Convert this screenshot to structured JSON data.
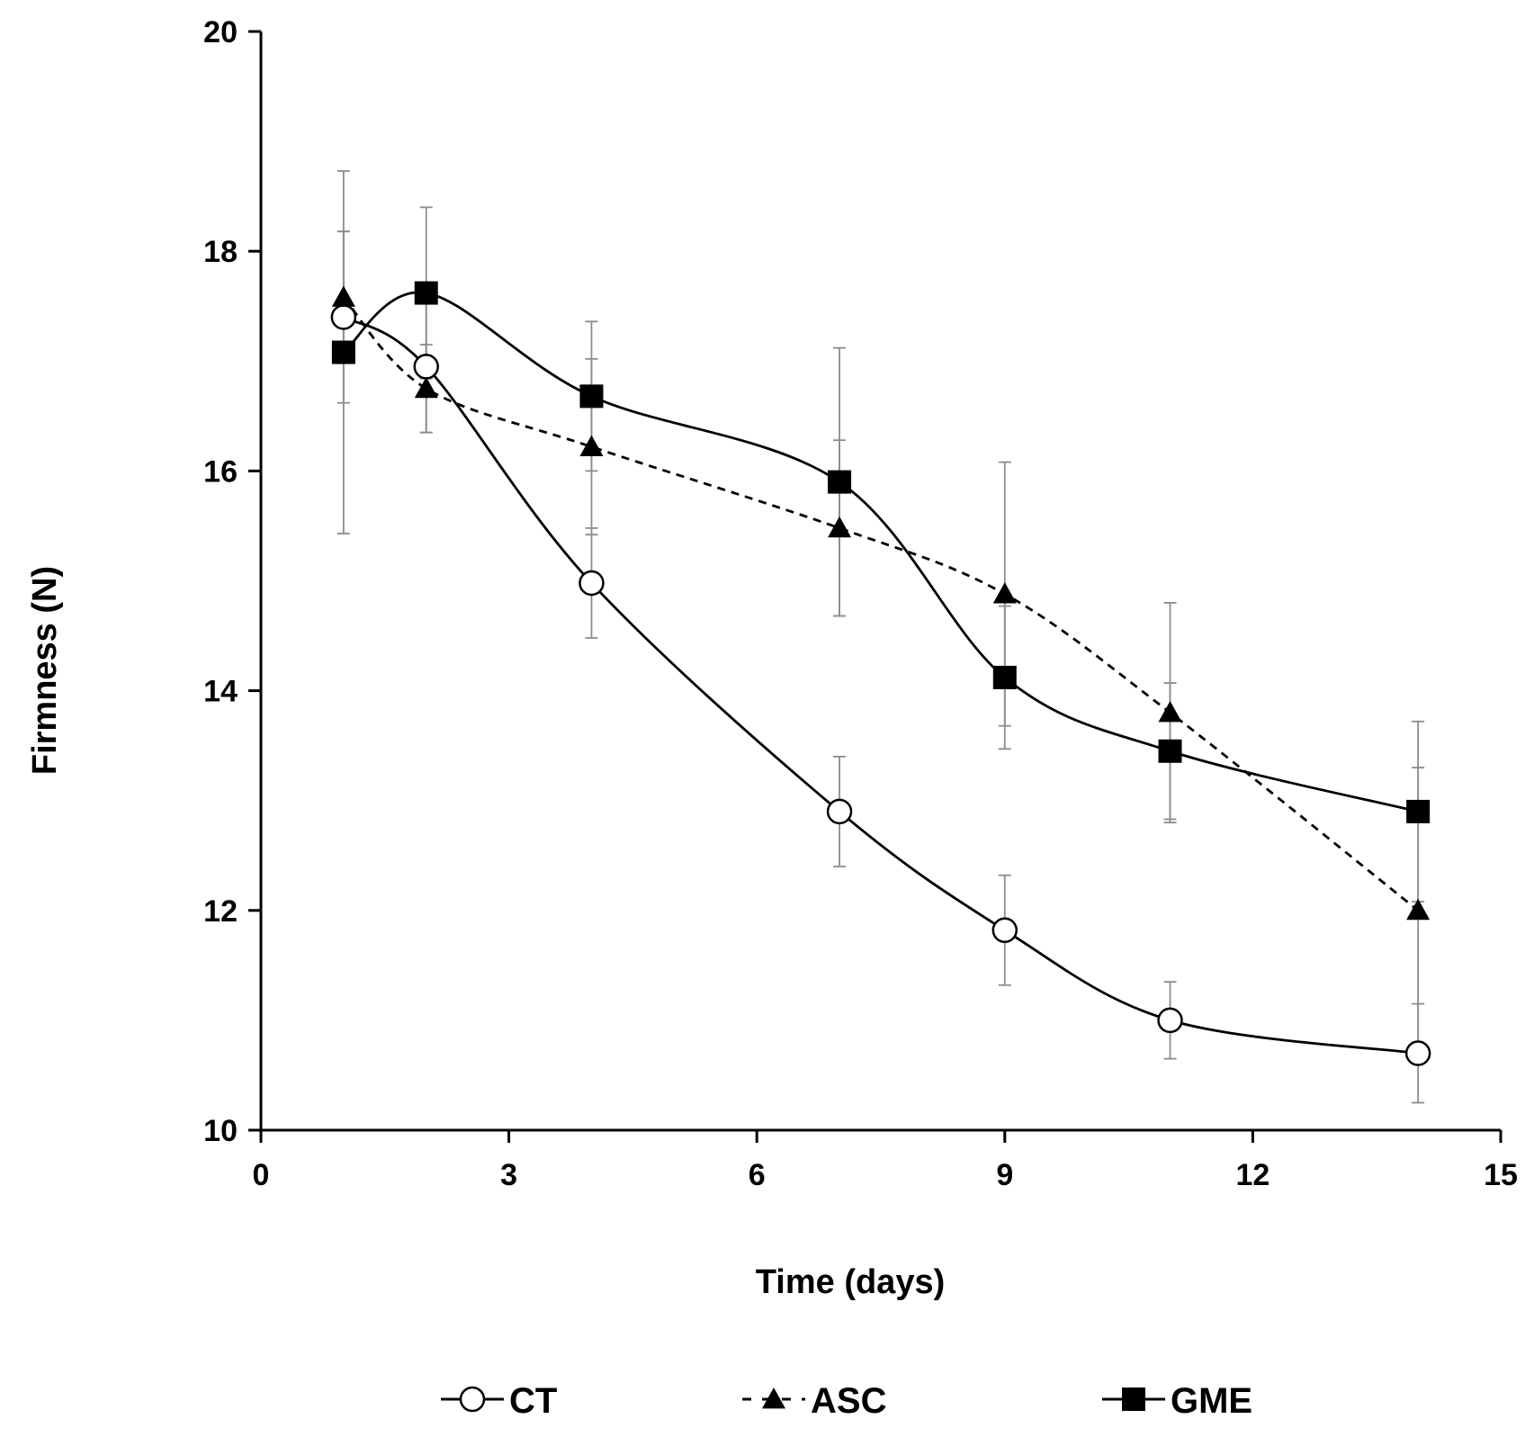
{
  "chart_data": {
    "type": "line",
    "xlabel": "Time (days)",
    "ylabel": "Firmness (N)",
    "xlim": [
      0,
      15
    ],
    "ylim": [
      10,
      20
    ],
    "x_ticks": [
      0,
      3,
      6,
      9,
      12,
      15
    ],
    "y_ticks": [
      10,
      12,
      14,
      16,
      18,
      20
    ],
    "grid": false,
    "legend_position": "bottom",
    "x": [
      1,
      2,
      4,
      7,
      9,
      11,
      14
    ],
    "series": [
      {
        "name": "CT",
        "marker": "open-circle",
        "line_style": "solid",
        "values": [
          17.4,
          16.95,
          14.98,
          12.9,
          11.82,
          11.0,
          10.7
        ],
        "error": [
          0.78,
          0.6,
          0.5,
          0.5,
          0.5,
          0.35,
          0.45
        ]
      },
      {
        "name": "ASC",
        "marker": "filled-triangle",
        "line_style": "dashed",
        "values": [
          17.58,
          16.75,
          16.22,
          15.48,
          14.88,
          13.8,
          12.0
        ],
        "error": [
          0.6,
          0.4,
          0.8,
          0.8,
          1.2,
          1.0,
          1.3
        ]
      },
      {
        "name": "GME",
        "marker": "filled-square",
        "line_style": "solid",
        "values": [
          17.08,
          17.62,
          16.68,
          15.9,
          14.12,
          13.45,
          12.9
        ],
        "error": [
          1.65,
          0.78,
          0.68,
          1.22,
          0.65,
          0.62,
          0.82
        ]
      }
    ]
  },
  "colors": {
    "line": "#000000",
    "error_bar": "#8c8c8c",
    "marker_fill_open": "#ffffff",
    "marker_fill_solid": "#000000"
  }
}
